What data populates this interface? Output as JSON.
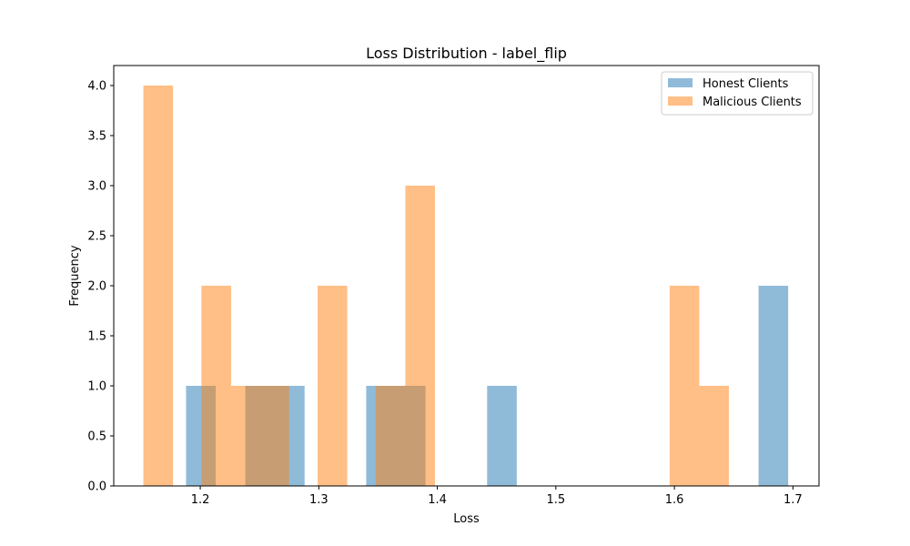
{
  "chart_data": {
    "type": "bar",
    "title": "Loss Distribution - label_flip",
    "xlabel": "Loss",
    "ylabel": "Frequency",
    "xlim": [
      1.127,
      1.722
    ],
    "ylim": [
      0,
      4.2
    ],
    "xticks": [
      "1.2",
      "1.3",
      "1.4",
      "1.5",
      "1.6",
      "1.7"
    ],
    "yticks": [
      "0.0",
      "0.5",
      "1.0",
      "1.5",
      "2.0",
      "2.5",
      "3.0",
      "3.5",
      "4.0"
    ],
    "grid": false,
    "legend_position": "top-right",
    "series": [
      {
        "name": "Honest Clients",
        "color": "#1f77b4",
        "opacity": 0.5,
        "bins": [
          {
            "x0": 1.188,
            "x1": 1.213,
            "value": 1
          },
          {
            "x0": 1.238,
            "x1": 1.263,
            "value": 1
          },
          {
            "x0": 1.263,
            "x1": 1.288,
            "value": 1
          },
          {
            "x0": 1.34,
            "x1": 1.365,
            "value": 1
          },
          {
            "x0": 1.365,
            "x1": 1.39,
            "value": 1
          },
          {
            "x0": 1.442,
            "x1": 1.467,
            "value": 1
          },
          {
            "x0": 1.671,
            "x1": 1.696,
            "value": 2
          }
        ]
      },
      {
        "name": "Malicious Clients",
        "color": "#ff7f0e",
        "opacity": 0.5,
        "bins": [
          {
            "x0": 1.152,
            "x1": 1.177,
            "value": 4
          },
          {
            "x0": 1.201,
            "x1": 1.226,
            "value": 2
          },
          {
            "x0": 1.226,
            "x1": 1.25,
            "value": 1
          },
          {
            "x0": 1.25,
            "x1": 1.275,
            "value": 1
          },
          {
            "x0": 1.299,
            "x1": 1.324,
            "value": 2
          },
          {
            "x0": 1.348,
            "x1": 1.373,
            "value": 1
          },
          {
            "x0": 1.373,
            "x1": 1.398,
            "value": 3
          },
          {
            "x0": 1.596,
            "x1": 1.621,
            "value": 2
          },
          {
            "x0": 1.621,
            "x1": 1.646,
            "value": 1
          }
        ]
      }
    ]
  }
}
